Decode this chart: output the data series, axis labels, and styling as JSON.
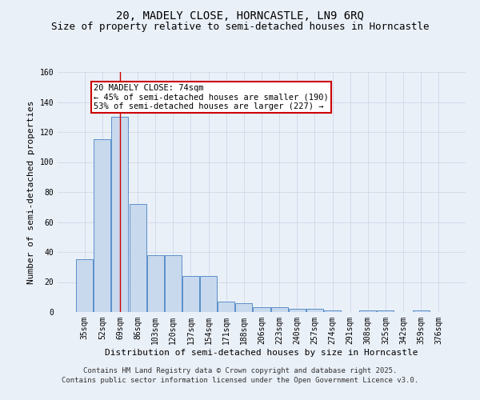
{
  "title": "20, MADELY CLOSE, HORNCASTLE, LN9 6RQ",
  "subtitle": "Size of property relative to semi-detached houses in Horncastle",
  "xlabel": "Distribution of semi-detached houses by size in Horncastle",
  "ylabel": "Number of semi-detached properties",
  "categories": [
    "35sqm",
    "52sqm",
    "69sqm",
    "86sqm",
    "103sqm",
    "120sqm",
    "137sqm",
    "154sqm",
    "171sqm",
    "188sqm",
    "206sqm",
    "223sqm",
    "240sqm",
    "257sqm",
    "274sqm",
    "291sqm",
    "308sqm",
    "325sqm",
    "342sqm",
    "359sqm",
    "376sqm"
  ],
  "values": [
    35,
    115,
    130,
    72,
    38,
    38,
    24,
    24,
    7,
    6,
    3,
    3,
    2,
    2,
    1,
    0,
    1,
    1,
    0,
    1,
    0
  ],
  "bar_color": "#c8d9ee",
  "bar_edge_color": "#5b8fc9",
  "background_color": "#eaf0f8",
  "grid_color": "#d0d8e8",
  "red_line_x": 2,
  "annotation_title": "20 MADELY CLOSE: 74sqm",
  "annotation_line1": "← 45% of semi-detached houses are smaller (190)",
  "annotation_line2": "53% of semi-detached houses are larger (227) →",
  "annotation_box_color": "#ffffff",
  "annotation_box_edge": "#cc0000",
  "footer_line1": "Contains HM Land Registry data © Crown copyright and database right 2025.",
  "footer_line2": "Contains public sector information licensed under the Open Government Licence v3.0.",
  "ylim": [
    0,
    160
  ],
  "yticks": [
    0,
    20,
    40,
    60,
    80,
    100,
    120,
    140,
    160
  ],
  "title_fontsize": 10,
  "subtitle_fontsize": 9,
  "axis_fontsize": 8,
  "tick_fontsize": 7,
  "annotation_fontsize": 7.5,
  "footer_fontsize": 6.5
}
